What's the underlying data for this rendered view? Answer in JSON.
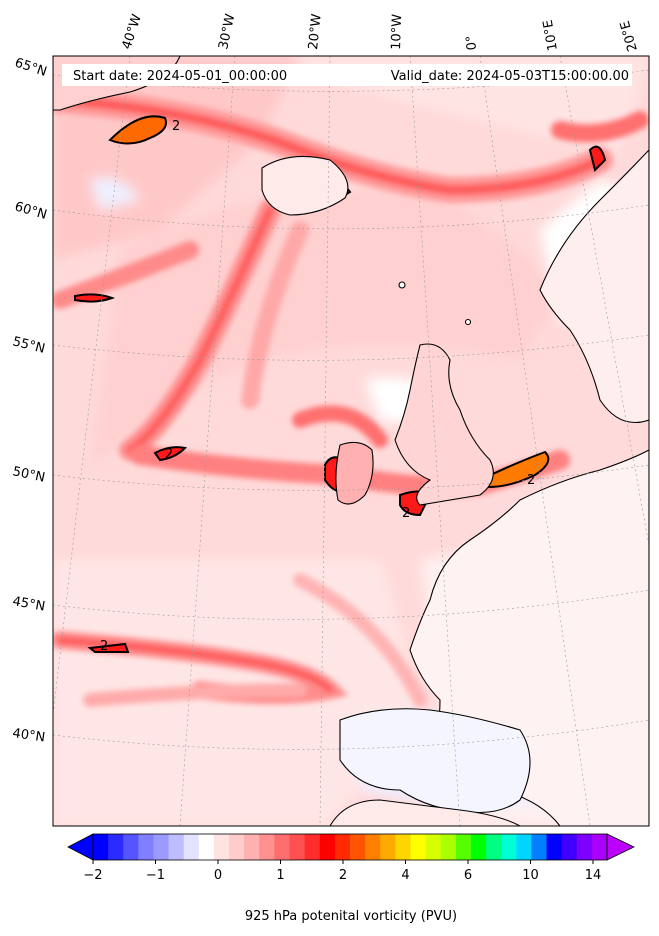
{
  "header": {
    "start_date": "Start date: 2024-05-01_00:00:00",
    "valid_date": "Valid_date: 2024-05-03T15:00:00.00"
  },
  "longitude_labels": [
    "40°W",
    "30°W",
    "20°W",
    "10°W",
    "0°",
    "10°E",
    "20°E"
  ],
  "latitude_labels": [
    "65°N",
    "60°N",
    "55°N",
    "50°N",
    "45°N",
    "40°N"
  ],
  "colorbar": {
    "label": "925 hPa potenital vorticity (PVU)",
    "tick_labels": [
      "−2",
      "−1",
      "0",
      "1",
      "2",
      "4",
      "6",
      "10",
      "14"
    ],
    "colors": [
      "#0000ff",
      "#2b2bff",
      "#5555ff",
      "#7f7fff",
      "#9a9aff",
      "#bdbdff",
      "#e3e3ff",
      "#ffffff",
      "#ffe3e3",
      "#ffcccc",
      "#ffb0b0",
      "#ff9090",
      "#ff6e6e",
      "#ff5050",
      "#ff2c2c",
      "#ff0000",
      "#ff2a00",
      "#ff5500",
      "#ff8000",
      "#ffaa00",
      "#ffd500",
      "#ffff00",
      "#d5ff00",
      "#aaff00",
      "#55ff00",
      "#00ff00",
      "#00ff80",
      "#00ffd5",
      "#00d5ff",
      "#0080ff",
      "#0000ff",
      "#4000ff",
      "#8000ff",
      "#aa00ff"
    ]
  },
  "contour_label": "2",
  "colors": {
    "sea_background": "#ffd6d6",
    "strong_pv": "#ff3333",
    "peak_pv": "#ff8800",
    "negative_pv": "#e6e8ff",
    "coastline": "#000000"
  }
}
